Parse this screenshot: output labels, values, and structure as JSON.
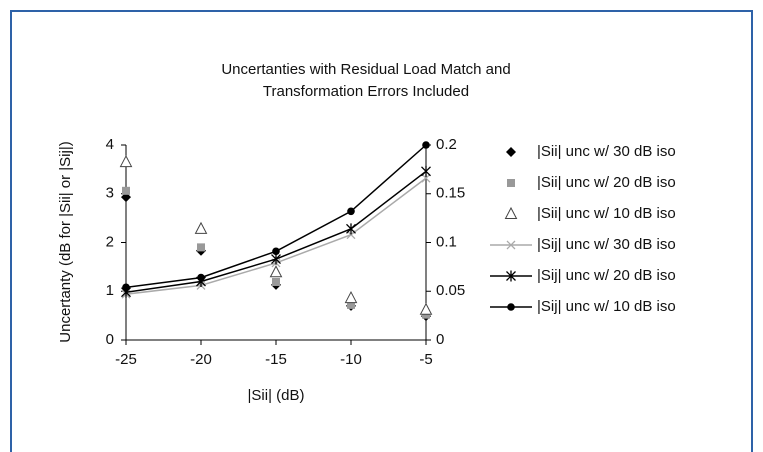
{
  "chart_data": {
    "type": "line",
    "title": [
      "Uncertanties with Residual Load Match and",
      "Transformation Errors Included"
    ],
    "x_label": "|Sii| (dB)",
    "y_label": "Uncertanty (dB for |Sii| or |Sij|)",
    "x": [
      -25,
      -20,
      -15,
      -10,
      -5
    ],
    "xlim": [
      -25,
      -5
    ],
    "xticks": [
      -25,
      -20,
      -15,
      -10,
      -5
    ],
    "ylim": [
      0,
      4
    ],
    "yticks": [
      0,
      1,
      2,
      3,
      4
    ],
    "y2lim": [
      0,
      0.2
    ],
    "y2ticks": [
      0,
      0.05,
      0.1,
      0.15,
      0.2
    ],
    "legend": "right",
    "series": [
      {
        "name": "|Sii| unc w/ 30 dB iso",
        "color": "#000000",
        "marker": "diamond",
        "line": false,
        "values": [
          2.93,
          1.83,
          1.13,
          0.7,
          0.49
        ]
      },
      {
        "name": "|Sii| unc w/ 20 dB iso",
        "color": "#999999",
        "marker": "square",
        "line": false,
        "values": [
          3.06,
          1.9,
          1.19,
          0.72,
          0.52
        ]
      },
      {
        "name": "|Sii| unc w/ 10 dB iso",
        "color": "#444444",
        "marker": "triangle",
        "line": false,
        "values": [
          3.65,
          2.28,
          1.39,
          0.86,
          0.62
        ]
      },
      {
        "name": "|Sij| unc w/ 30 dB iso",
        "color": "#aaaaaa",
        "marker": "x",
        "line": true,
        "axis": "y2",
        "values": [
          0.047,
          0.056,
          0.079,
          0.108,
          0.166
        ]
      },
      {
        "name": "|Sij| unc w/ 20 dB iso",
        "color": "#000000",
        "marker": "star",
        "line": true,
        "axis": "y2",
        "values": [
          0.049,
          0.06,
          0.083,
          0.114,
          0.173
        ]
      },
      {
        "name": "|Sij| unc w/ 10 dB iso",
        "color": "#000000",
        "marker": "circle",
        "line": true,
        "axis": "y2",
        "values": [
          0.054,
          0.064,
          0.091,
          0.132,
          0.2
        ]
      }
    ]
  }
}
